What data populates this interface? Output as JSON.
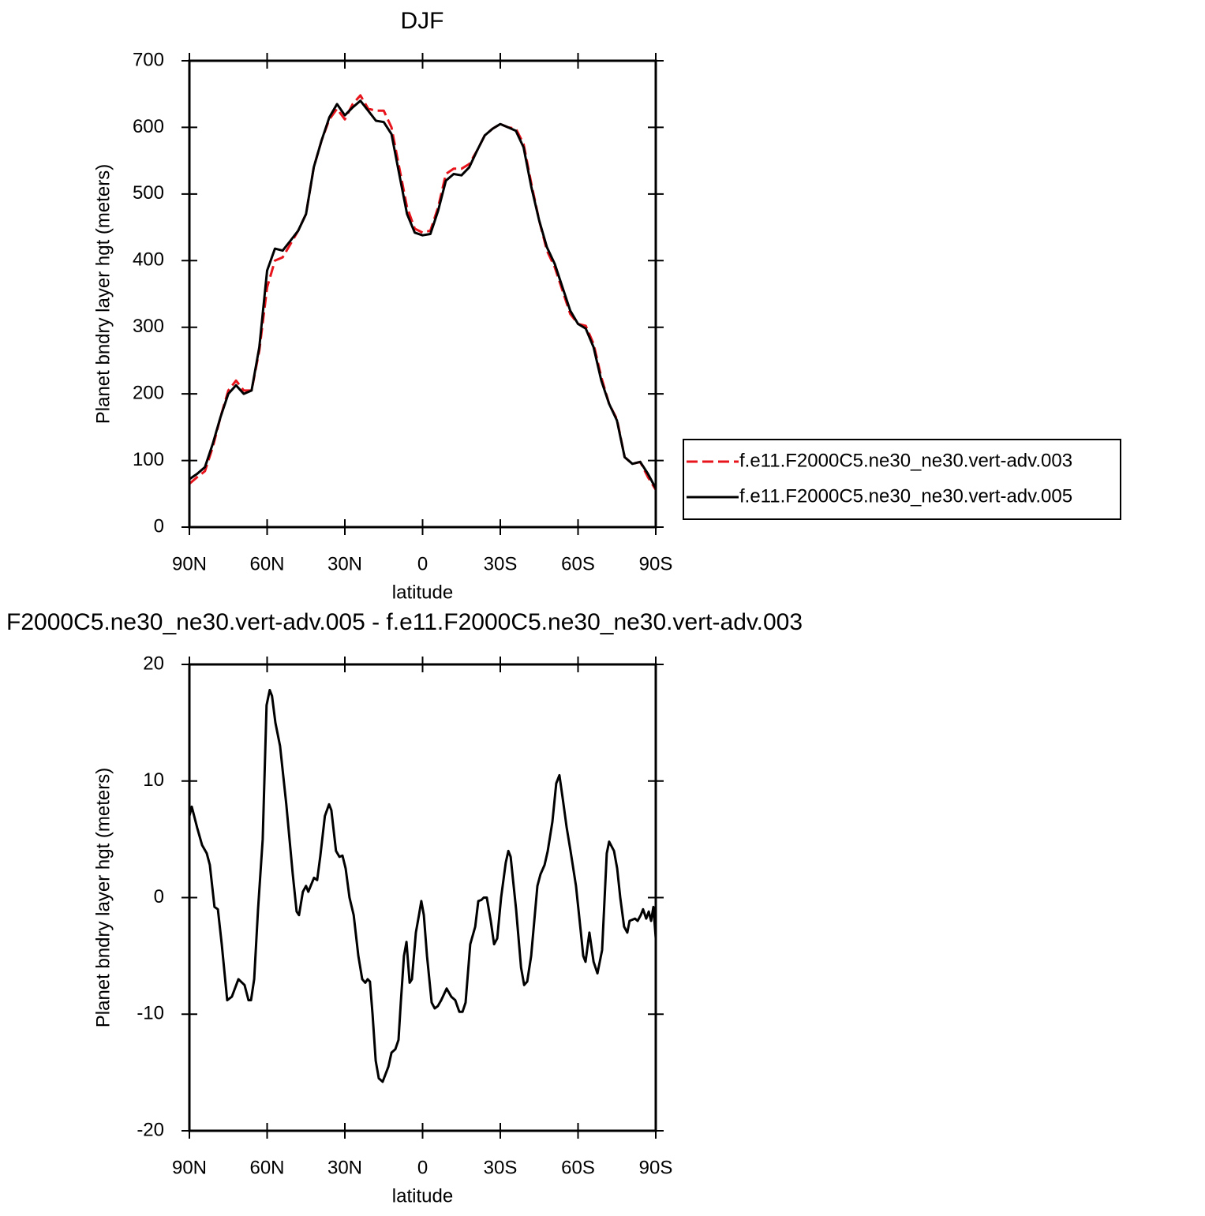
{
  "chart_data": [
    {
      "type": "line",
      "title": "DJF",
      "xlabel": "latitude",
      "ylabel": "Planet bndry layer hgt (meters)",
      "xlim": [
        90,
        -90
      ],
      "ylim": [
        0,
        700
      ],
      "xticks": [
        {
          "value": 90,
          "label": "90N"
        },
        {
          "value": 60,
          "label": "60N"
        },
        {
          "value": 30,
          "label": "30N"
        },
        0,
        {
          "value": -30,
          "label": "30S"
        },
        {
          "value": -60,
          "label": "60S"
        },
        {
          "value": -90,
          "label": "90S"
        }
      ],
      "yticks": [
        0,
        100,
        200,
        300,
        400,
        500,
        600,
        700
      ],
      "legend": "right",
      "x": [
        90,
        87,
        84,
        81,
        78,
        75,
        72,
        69,
        66,
        63,
        60,
        57,
        54,
        51,
        48,
        45,
        42,
        39,
        36,
        33,
        30,
        27,
        24,
        21,
        18,
        15,
        12,
        9,
        6,
        3,
        0,
        -3,
        -6,
        -9,
        -12,
        -15,
        -18,
        -21,
        -24,
        -27,
        -30,
        -33,
        -36,
        -39,
        -42,
        -45,
        -48,
        -51,
        -54,
        -57,
        -60,
        -63,
        -66,
        -69,
        -72,
        -75,
        -78,
        -81,
        -84,
        -87,
        -90
      ],
      "series": [
        {
          "name": "f.e11.F2000C5.ne30_ne30.vert-adv.003",
          "color": "#e8141c",
          "dash": "dashed",
          "values": [
            65,
            75,
            84,
            120,
            165,
            205,
            220,
            205,
            205,
            265,
            360,
            400,
            405,
            425,
            445,
            470,
            540,
            580,
            612,
            628,
            612,
            635,
            648,
            628,
            625,
            625,
            600,
            540,
            480,
            448,
            442,
            445,
            480,
            530,
            538,
            538,
            545,
            565,
            588,
            598,
            605,
            600,
            598,
            575,
            515,
            460,
            415,
            390,
            355,
            320,
            305,
            302,
            275,
            225,
            185,
            162,
            105,
            95,
            98,
            75,
            56
          ]
        },
        {
          "name": "f.e11.F2000C5.ne30_ne30.vert-adv.005",
          "color": "#000000",
          "dash": "solid",
          "values": [
            72,
            80,
            90,
            125,
            165,
            200,
            213,
            200,
            205,
            270,
            385,
            418,
            415,
            430,
            445,
            470,
            540,
            580,
            615,
            635,
            618,
            630,
            640,
            625,
            610,
            608,
            590,
            530,
            470,
            442,
            438,
            440,
            475,
            520,
            530,
            528,
            540,
            565,
            588,
            598,
            605,
            600,
            595,
            570,
            510,
            460,
            420,
            395,
            360,
            325,
            305,
            298,
            270,
            220,
            185,
            160,
            105,
            95,
            98,
            80,
            58
          ]
        }
      ]
    },
    {
      "type": "line",
      "title": "F2000C5.ne30_ne30.vert-adv.005 - f.e11.F2000C5.ne30_ne30.vert-adv.003",
      "xlabel": "latitude",
      "ylabel": "Planet bndry layer hgt (meters)",
      "xlim": [
        90,
        -90
      ],
      "ylim": [
        -20,
        20
      ],
      "xticks": [
        {
          "value": 90,
          "label": "90N"
        },
        {
          "value": 60,
          "label": "60N"
        },
        {
          "value": 30,
          "label": "30N"
        },
        0,
        {
          "value": -30,
          "label": "30S"
        },
        {
          "value": -60,
          "label": "60S"
        },
        {
          "value": -90,
          "label": "90S"
        }
      ],
      "yticks": [
        -20,
        -10,
        0,
        10,
        20
      ],
      "x": [
        90,
        89.1,
        87.0,
        85.1,
        83.3,
        82.1,
        80.3,
        79.0,
        77.5,
        75.4,
        73.6,
        71.1,
        68.7,
        67.2,
        66.2,
        65.0,
        63.5,
        61.7,
        60.2,
        59.0,
        58.1,
        56.8,
        55.0,
        52.6,
        50.1,
        48.6,
        47.7,
        46.2,
        45.0,
        44.1,
        41.9,
        40.7,
        39.5,
        37.7,
        36.1,
        35.2,
        33.4,
        32.1,
        30.9,
        29.7,
        28.2,
        26.6,
        24.8,
        23.3,
        22.1,
        21.2,
        20.3,
        19.3,
        18.1,
        16.9,
        15.4,
        13.2,
        12.0,
        10.5,
        9.3,
        8.4,
        7.2,
        6.2,
        5.0,
        4.1,
        2.6,
        1.4,
        0.5,
        -0.5,
        -1.7,
        -3.5,
        -4.7,
        -5.9,
        -7.2,
        -9.3,
        -11.1,
        -12.6,
        -14.2,
        -15.4,
        -16.6,
        -18.4,
        -20.3,
        -21.5,
        -22.7,
        -23.6,
        -24.8,
        -26.3,
        -27.6,
        -28.8,
        -30.3,
        -32.1,
        -33.1,
        -34.0,
        -36.1,
        -38.0,
        -39.2,
        -40.4,
        -41.9,
        -44.3,
        -45.5,
        -47.1,
        -48.3,
        -50.1,
        -51.6,
        -52.8,
        -54.1,
        -55.6,
        -57.1,
        -59.2,
        -61.1,
        -62.0,
        -62.9,
        -64.4,
        -66.0,
        -67.5,
        -69.3,
        -71.1,
        -72.0,
        -73.9,
        -75.1,
        -76.3,
        -77.8,
        -79.0,
        -79.9,
        -82.0,
        -83.0,
        -84.2,
        -85.1,
        -86.3,
        -87.3,
        -88.2,
        -89.1,
        -90
      ],
      "series": [
        {
          "color": "#000000",
          "dash": "solid",
          "values": [
            7,
            7.8,
            6,
            4.5,
            3.8,
            2.8,
            -0.8,
            -1,
            -4,
            -8.8,
            -8.5,
            -7,
            -7.5,
            -8.8,
            -8.8,
            -7,
            -1,
            5,
            16.5,
            17.8,
            17.3,
            15,
            13,
            8,
            2,
            -1.2,
            -1.5,
            0.5,
            1,
            0.5,
            1.7,
            1.5,
            3.5,
            7,
            8,
            7.5,
            4,
            3.5,
            3.6,
            2.5,
            0,
            -1.5,
            -5,
            -7,
            -7.3,
            -7,
            -7.2,
            -10,
            -14,
            -15.5,
            -15.8,
            -14.5,
            -13.3,
            -13,
            -12.2,
            -9,
            -5,
            -3.8,
            -7.3,
            -7,
            -3,
            -1.5,
            -0.3,
            -1.5,
            -5,
            -9,
            -9.5,
            -9.3,
            -8.8,
            -7.8,
            -8.5,
            -8.8,
            -9.8,
            -9.8,
            -9,
            -4,
            -2.5,
            -0.3,
            -0.2,
            0,
            0,
            -2,
            -4,
            -3.5,
            0,
            3,
            4,
            3.5,
            -1,
            -6,
            -7.5,
            -7.2,
            -5,
            1,
            2,
            2.8,
            4,
            6.5,
            9.8,
            10.5,
            8.5,
            6,
            4,
            1,
            -3,
            -5,
            -5.5,
            -3,
            -5.5,
            -6.5,
            -4.5,
            3.8,
            4.8,
            4,
            2.5,
            0,
            -2.5,
            -3,
            -2,
            -1.8,
            -2,
            -1.5,
            -1,
            -1.8,
            -1.2,
            -2,
            -0.8,
            -3.5
          ]
        }
      ]
    }
  ]
}
